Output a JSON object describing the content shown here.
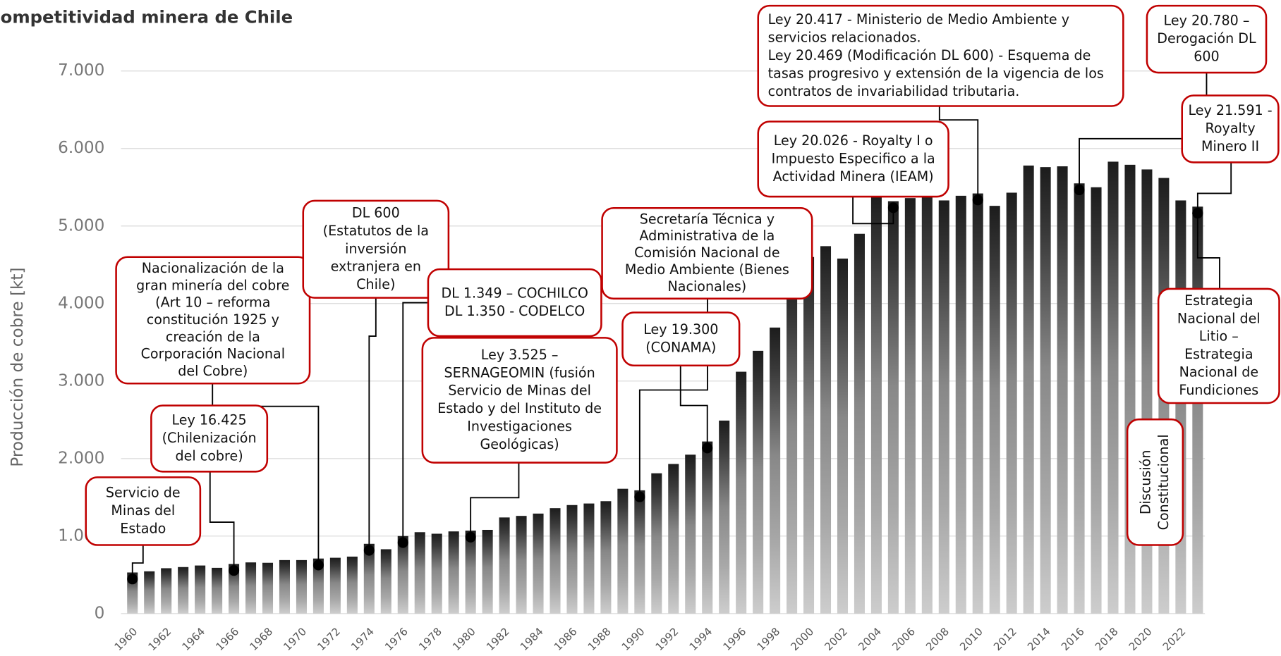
{
  "chart_data": {
    "type": "bar",
    "title": "Competitividad minera de Chile",
    "y_label": "Producción de cobre [kt]",
    "categories": [
      "1960",
      null,
      "1962",
      null,
      "1964",
      null,
      "1966",
      null,
      "1968",
      null,
      "1970",
      null,
      "1972",
      null,
      "1974",
      null,
      "1976",
      null,
      "1978",
      null,
      "1980",
      null,
      "1982",
      null,
      "1984",
      null,
      "1986",
      null,
      "1988",
      null,
      "1990",
      null,
      "1992",
      null,
      "1994",
      null,
      "1996",
      null,
      "1998",
      null,
      "2000",
      null,
      "2002",
      null,
      "2004",
      null,
      "2006",
      null,
      "2008",
      null,
      "2010",
      null,
      "2012",
      null,
      "2014",
      null,
      "2016",
      null,
      "2018",
      null,
      "2020",
      null,
      "2022",
      null
    ],
    "values": [
      530,
      545,
      585,
      600,
      620,
      590,
      640,
      660,
      655,
      690,
      690,
      710,
      720,
      735,
      900,
      830,
      1000,
      1050,
      1030,
      1060,
      1070,
      1080,
      1240,
      1260,
      1290,
      1360,
      1400,
      1420,
      1450,
      1610,
      1590,
      1810,
      1930,
      2050,
      2220,
      2490,
      3120,
      3390,
      3690,
      4390,
      4600,
      4740,
      4580,
      4900,
      5410,
      5320,
      5360,
      5560,
      5330,
      5390,
      5420,
      5260,
      5430,
      5780,
      5760,
      5770,
      5550,
      5500,
      5830,
      5790,
      5730,
      5620,
      5330,
      5250
    ],
    "ylim": [
      0,
      7000
    ],
    "yticks": [
      0,
      {
        "value": 1000,
        "label": "1.000"
      },
      {
        "value": 2000,
        "label": "2.000"
      },
      {
        "value": 3000,
        "label": "3.000"
      },
      {
        "value": 4000,
        "label": "4.000"
      },
      {
        "value": 5000,
        "label": "5.000"
      },
      {
        "value": 6000,
        "label": "6.000"
      },
      {
        "value": 7000,
        "label": "7.000"
      }
    ],
    "grid": true,
    "annotations": [
      {
        "lines": [
          "Servicio de",
          "Minas del",
          "Estado"
        ]
      },
      {
        "lines": [
          "Ley 16.425",
          "(Chilenización",
          "del cobre)"
        ]
      },
      {
        "lines": [
          "Nacionalización de la",
          "gran minería del cobre",
          "(Art 10 – reforma",
          "constitución 1925 y",
          "creación de la",
          "Corporación Nacional",
          "del Cobre)"
        ]
      },
      {
        "lines": [
          "DL 600",
          "(Estatutos de la",
          "inversión",
          "extranjera en",
          "Chile)"
        ]
      },
      {
        "lines": [
          "DL 1.349 – COCHILCO",
          "DL 1.350 - CODELCO"
        ]
      },
      {
        "lines": [
          "Ley 3.525 –",
          "SERNAGEOMIN (fusión",
          "Servicio de Minas del",
          "Estado y del Instituto de",
          "Investigaciones",
          "Geológicas)"
        ]
      },
      {
        "lines": [
          "Secretaría Técnica y",
          "Administrativa de la",
          "Comisión Nacional de",
          "Medio Ambiente (Bienes",
          "Nacionales)"
        ]
      },
      {
        "lines": [
          "Ley 19.300",
          "(CONAMA)"
        ]
      },
      {
        "lines": [
          "Ley 20.026 - Royalty I o",
          "Impuesto Especifico a la",
          "Actividad Minera (IEAM)"
        ]
      },
      {
        "lines": [
          "Ley 20.417 - Ministerio de Medio Ambiente y",
          "servicios relacionados.",
          "Ley 20.469 (Modificación DL 600) - Esquema de",
          "tasas progresivo y extensión de la vigencia de los",
          "contratos de invariabilidad tributaria."
        ]
      },
      {
        "lines": [
          "Ley 20.780 –",
          "Derogación DL",
          "600"
        ]
      },
      {
        "lines": [
          "Ley 21.591 -",
          "Royalty",
          "Minero II"
        ]
      },
      {
        "lines": [
          "Estrategia",
          "Nacional del",
          "Litio –",
          "Estrategia",
          "Nacional de",
          "Fundiciones"
        ]
      },
      {
        "lines": [
          "Discusión",
          "Constitucional"
        ]
      }
    ]
  }
}
